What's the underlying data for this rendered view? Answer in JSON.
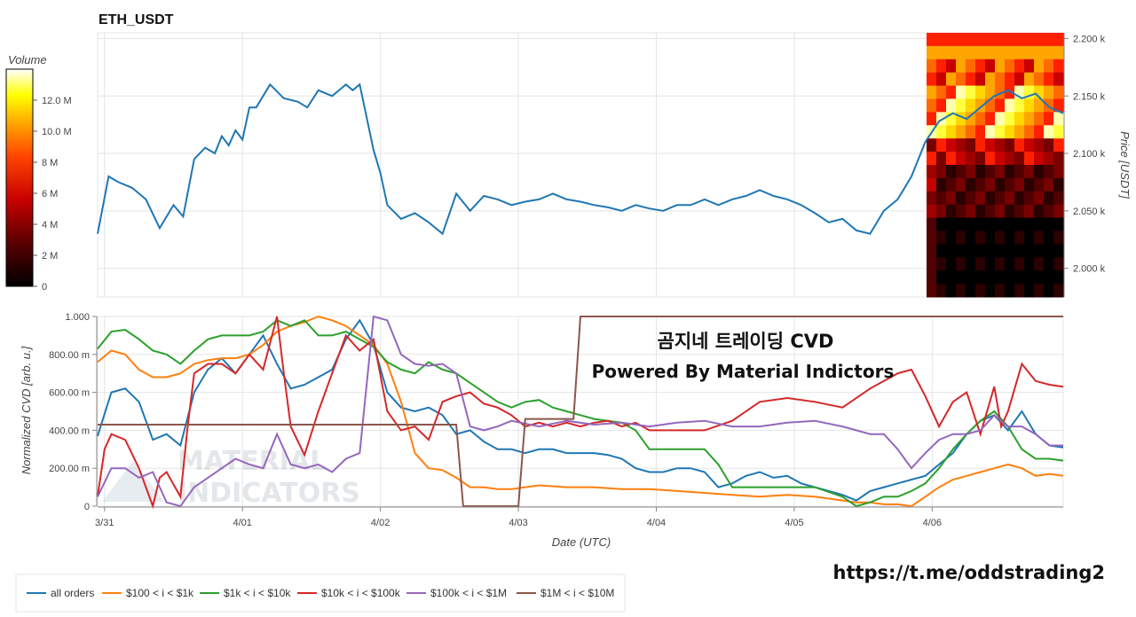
{
  "chart_data": {
    "title": "ETH_USDT",
    "colorbar": {
      "label": "Volume",
      "ticks": [
        "12.0 M",
        "10.0 M",
        "8 M",
        "6 M",
        "4 M",
        "2 M",
        "0"
      ],
      "tick_values": [
        12,
        10,
        8,
        6,
        4,
        2,
        0
      ],
      "range": [
        0,
        14
      ]
    },
    "price_panel": {
      "type": "line",
      "ylabel": "Price [USDT]",
      "ylim": [
        1975,
        2205
      ],
      "yticks": [
        2000,
        2050,
        2100,
        2150,
        2200
      ],
      "ytick_labels": [
        "2.000 k",
        "2.050 k",
        "2.100 k",
        "2.150 k",
        "2.200 k"
      ],
      "xlim": [
        0,
        7
      ],
      "color": "#1f77b4",
      "x": [
        0,
        0.08,
        0.15,
        0.25,
        0.35,
        0.45,
        0.55,
        0.62,
        0.7,
        0.78,
        0.85,
        0.9,
        0.95,
        1.0,
        1.05,
        1.1,
        1.15,
        1.25,
        1.35,
        1.45,
        1.52,
        1.6,
        1.7,
        1.8,
        1.85,
        1.9,
        2.0,
        2.05,
        2.1,
        2.2,
        2.3,
        2.4,
        2.5,
        2.6,
        2.7,
        2.8,
        2.9,
        3.0,
        3.1,
        3.2,
        3.3,
        3.4,
        3.5,
        3.6,
        3.7,
        3.8,
        3.9,
        4.0,
        4.1,
        4.2,
        4.3,
        4.4,
        4.5,
        4.6,
        4.7,
        4.8,
        4.9,
        5.0,
        5.1,
        5.2,
        5.3,
        5.4,
        5.5,
        5.6,
        5.7,
        5.8,
        5.9,
        6.0,
        6.1,
        6.2,
        6.3,
        6.4,
        6.5,
        6.6,
        6.7,
        6.8,
        6.9,
        7.0
      ],
      "y": [
        2030,
        2080,
        2075,
        2070,
        2060,
        2035,
        2055,
        2045,
        2095,
        2105,
        2100,
        2115,
        2107,
        2120,
        2112,
        2140,
        2140,
        2160,
        2148,
        2145,
        2140,
        2155,
        2150,
        2160,
        2155,
        2160,
        2103,
        2083,
        2055,
        2043,
        2048,
        2040,
        2030,
        2065,
        2050,
        2063,
        2060,
        2055,
        2058,
        2060,
        2065,
        2060,
        2058,
        2055,
        2053,
        2050,
        2055,
        2052,
        2050,
        2055,
        2055,
        2060,
        2055,
        2060,
        2063,
        2068,
        2063,
        2060,
        2055,
        2048,
        2040,
        2043,
        2033,
        2030,
        2050,
        2060,
        2080,
        2110,
        2128,
        2135,
        2130,
        2140,
        2150,
        2155,
        2148,
        2152,
        2140,
        2135
      ]
    },
    "cvd_panel": {
      "type": "line",
      "xlabel": "Date (UTC)",
      "ylabel": "Normalized CVD [arb. u.]",
      "ylim": [
        0,
        1
      ],
      "yticks": [
        0,
        0.2,
        0.4,
        0.6,
        0.8,
        1.0
      ],
      "ytick_labels": [
        "0",
        "200.00 m",
        "400.00 m",
        "600.00 m",
        "800.00 m",
        "1.000"
      ],
      "xlim": [
        0,
        7
      ],
      "xticks": [
        0.05,
        1.05,
        2.05,
        3.05,
        4.05,
        5.05,
        6.05
      ],
      "xtick_labels": [
        "3/31",
        "4/01",
        "4/02",
        "4/03",
        "4/04",
        "4/05",
        "4/06"
      ],
      "series": [
        {
          "name": "all orders",
          "color": "#1f77b4",
          "x": [
            0,
            0.1,
            0.2,
            0.3,
            0.4,
            0.5,
            0.6,
            0.7,
            0.8,
            0.9,
            1.0,
            1.1,
            1.2,
            1.3,
            1.4,
            1.5,
            1.6,
            1.7,
            1.8,
            1.9,
            2.0,
            2.1,
            2.2,
            2.3,
            2.4,
            2.5,
            2.6,
            2.7,
            2.8,
            2.9,
            3.0,
            3.1,
            3.2,
            3.3,
            3.4,
            3.5,
            3.6,
            3.7,
            3.8,
            3.9,
            4.0,
            4.1,
            4.2,
            4.3,
            4.4,
            4.5,
            4.6,
            4.7,
            4.8,
            4.9,
            5.0,
            5.1,
            5.2,
            5.3,
            5.4,
            5.5,
            5.6,
            5.7,
            5.8,
            5.9,
            6.0,
            6.1,
            6.2,
            6.3,
            6.4,
            6.5,
            6.6,
            6.7,
            6.8,
            6.9,
            7.0
          ],
          "y": [
            0.37,
            0.6,
            0.62,
            0.55,
            0.35,
            0.38,
            0.32,
            0.6,
            0.72,
            0.78,
            0.7,
            0.8,
            0.9,
            0.75,
            0.62,
            0.64,
            0.68,
            0.72,
            0.88,
            0.98,
            0.85,
            0.6,
            0.52,
            0.5,
            0.52,
            0.48,
            0.38,
            0.4,
            0.34,
            0.3,
            0.3,
            0.28,
            0.3,
            0.3,
            0.28,
            0.28,
            0.28,
            0.27,
            0.25,
            0.2,
            0.18,
            0.18,
            0.2,
            0.2,
            0.18,
            0.1,
            0.12,
            0.16,
            0.18,
            0.15,
            0.16,
            0.12,
            0.1,
            0.08,
            0.06,
            0.03,
            0.08,
            0.1,
            0.12,
            0.14,
            0.16,
            0.22,
            0.28,
            0.38,
            0.45,
            0.48,
            0.4,
            0.5,
            0.38,
            0.32,
            0.31
          ]
        },
        {
          "name": "$100 < i < $1k",
          "color": "#ff7f0e",
          "x": [
            0,
            0.1,
            0.2,
            0.3,
            0.4,
            0.5,
            0.6,
            0.7,
            0.8,
            0.9,
            1.0,
            1.1,
            1.2,
            1.3,
            1.4,
            1.5,
            1.6,
            1.7,
            1.8,
            1.9,
            2.0,
            2.1,
            2.2,
            2.3,
            2.4,
            2.5,
            2.6,
            2.7,
            2.8,
            2.9,
            3.0,
            3.2,
            3.4,
            3.6,
            3.8,
            4.0,
            4.2,
            4.4,
            4.6,
            4.8,
            5.0,
            5.2,
            5.4,
            5.5,
            5.6,
            5.7,
            5.8,
            5.9,
            6.0,
            6.1,
            6.2,
            6.3,
            6.4,
            6.5,
            6.6,
            6.7,
            6.8,
            6.9,
            7.0
          ],
          "y": [
            0.76,
            0.82,
            0.8,
            0.72,
            0.68,
            0.68,
            0.7,
            0.75,
            0.77,
            0.78,
            0.78,
            0.8,
            0.85,
            0.92,
            0.95,
            0.97,
            1.0,
            0.98,
            0.95,
            0.9,
            0.85,
            0.75,
            0.55,
            0.28,
            0.2,
            0.19,
            0.15,
            0.1,
            0.1,
            0.09,
            0.09,
            0.11,
            0.1,
            0.1,
            0.09,
            0.09,
            0.08,
            0.07,
            0.06,
            0.05,
            0.06,
            0.05,
            0.03,
            0.02,
            0.02,
            0.01,
            0.01,
            0.0,
            0.05,
            0.1,
            0.14,
            0.16,
            0.18,
            0.2,
            0.22,
            0.2,
            0.16,
            0.17,
            0.16
          ]
        },
        {
          "name": "$1k < i < $10k",
          "color": "#2ca02c",
          "x": [
            0,
            0.1,
            0.2,
            0.3,
            0.4,
            0.5,
            0.6,
            0.7,
            0.8,
            0.9,
            1.0,
            1.1,
            1.2,
            1.3,
            1.4,
            1.5,
            1.6,
            1.7,
            1.8,
            1.9,
            2.0,
            2.1,
            2.2,
            2.3,
            2.4,
            2.5,
            2.6,
            2.7,
            2.8,
            2.9,
            3.0,
            3.1,
            3.2,
            3.3,
            3.4,
            3.5,
            3.6,
            3.7,
            3.8,
            3.9,
            4.0,
            4.2,
            4.4,
            4.5,
            4.6,
            4.7,
            4.8,
            5.0,
            5.2,
            5.4,
            5.5,
            5.6,
            5.7,
            5.8,
            5.9,
            6.0,
            6.1,
            6.2,
            6.3,
            6.4,
            6.5,
            6.6,
            6.7,
            6.8,
            6.9,
            7.0
          ],
          "y": [
            0.83,
            0.92,
            0.93,
            0.88,
            0.82,
            0.8,
            0.75,
            0.82,
            0.88,
            0.9,
            0.9,
            0.9,
            0.92,
            0.98,
            0.95,
            0.98,
            0.9,
            0.9,
            0.92,
            0.88,
            0.84,
            0.76,
            0.72,
            0.7,
            0.76,
            0.72,
            0.7,
            0.65,
            0.6,
            0.55,
            0.52,
            0.55,
            0.56,
            0.52,
            0.5,
            0.48,
            0.46,
            0.45,
            0.44,
            0.4,
            0.3,
            0.3,
            0.3,
            0.22,
            0.1,
            0.1,
            0.1,
            0.1,
            0.1,
            0.05,
            0.0,
            0.02,
            0.05,
            0.05,
            0.08,
            0.12,
            0.2,
            0.3,
            0.38,
            0.45,
            0.5,
            0.42,
            0.3,
            0.25,
            0.25,
            0.24
          ]
        },
        {
          "name": "$10k < i < $100k",
          "color": "#d62728",
          "x": [
            0,
            0.05,
            0.1,
            0.2,
            0.3,
            0.4,
            0.45,
            0.5,
            0.6,
            0.65,
            0.7,
            0.8,
            0.9,
            1.0,
            1.1,
            1.2,
            1.3,
            1.35,
            1.4,
            1.5,
            1.6,
            1.7,
            1.8,
            1.9,
            2.0,
            2.1,
            2.2,
            2.3,
            2.4,
            2.5,
            2.6,
            2.7,
            2.8,
            2.9,
            3.0,
            3.1,
            3.2,
            3.3,
            3.4,
            3.5,
            3.6,
            3.7,
            3.8,
            3.9,
            4.0,
            4.2,
            4.4,
            4.6,
            4.8,
            5.0,
            5.2,
            5.4,
            5.6,
            5.8,
            5.9,
            6.0,
            6.1,
            6.2,
            6.3,
            6.4,
            6.5,
            6.55,
            6.6,
            6.7,
            6.8,
            6.9,
            7.0
          ],
          "y": [
            0.05,
            0.3,
            0.38,
            0.35,
            0.2,
            0.0,
            0.15,
            0.18,
            0.05,
            0.4,
            0.7,
            0.75,
            0.75,
            0.7,
            0.8,
            0.72,
            1.0,
            0.7,
            0.42,
            0.27,
            0.5,
            0.7,
            0.9,
            0.82,
            0.88,
            0.5,
            0.4,
            0.42,
            0.35,
            0.55,
            0.58,
            0.6,
            0.54,
            0.52,
            0.48,
            0.42,
            0.44,
            0.42,
            0.44,
            0.42,
            0.44,
            0.45,
            0.42,
            0.44,
            0.4,
            0.4,
            0.4,
            0.45,
            0.55,
            0.57,
            0.55,
            0.52,
            0.62,
            0.7,
            0.72,
            0.58,
            0.42,
            0.55,
            0.6,
            0.38,
            0.63,
            0.42,
            0.5,
            0.75,
            0.66,
            0.64,
            0.63
          ]
        },
        {
          "name": "$100k < i < $1M",
          "color": "#9467bd",
          "x": [
            0,
            0.1,
            0.2,
            0.3,
            0.4,
            0.5,
            0.6,
            0.7,
            0.8,
            0.9,
            1.0,
            1.1,
            1.2,
            1.3,
            1.4,
            1.5,
            1.6,
            1.7,
            1.8,
            1.9,
            2.0,
            2.1,
            2.2,
            2.3,
            2.4,
            2.5,
            2.6,
            2.7,
            2.8,
            2.9,
            3.0,
            3.2,
            3.4,
            3.6,
            3.8,
            4.0,
            4.2,
            4.4,
            4.6,
            4.8,
            5.0,
            5.2,
            5.4,
            5.5,
            5.6,
            5.7,
            5.8,
            5.9,
            6.0,
            6.1,
            6.2,
            6.3,
            6.4,
            6.5,
            6.6,
            6.7,
            6.8,
            6.9,
            7.0
          ],
          "y": [
            0.05,
            0.2,
            0.2,
            0.15,
            0.18,
            0.02,
            0.0,
            0.1,
            0.15,
            0.2,
            0.25,
            0.22,
            0.2,
            0.38,
            0.22,
            0.2,
            0.22,
            0.18,
            0.25,
            0.28,
            1.0,
            0.98,
            0.8,
            0.75,
            0.74,
            0.75,
            0.7,
            0.42,
            0.4,
            0.42,
            0.45,
            0.42,
            0.45,
            0.43,
            0.44,
            0.42,
            0.44,
            0.45,
            0.42,
            0.42,
            0.44,
            0.45,
            0.42,
            0.4,
            0.38,
            0.38,
            0.3,
            0.2,
            0.28,
            0.35,
            0.38,
            0.38,
            0.4,
            0.48,
            0.42,
            0.42,
            0.38,
            0.32,
            0.32
          ]
        },
        {
          "name": "$1M < i < $10M",
          "color": "#8c564b",
          "x": [
            0,
            2.6,
            2.65,
            3.05,
            3.1,
            3.45,
            3.5,
            7.0
          ],
          "y": [
            0.43,
            0.43,
            0.0,
            0.0,
            0.46,
            0.46,
            1.0,
            1.0
          ]
        }
      ]
    },
    "heatmap": {
      "type": "heatmap",
      "description_rows": 20,
      "description_cols": 14
    },
    "annotations": {
      "korean_title": "곰지네 트레이딩 CVD",
      "powered_by": "Powered By Material Indictors",
      "watermark_line1": "MATERIAL",
      "watermark_line2": "INDICATORS",
      "telegram_link": "https://t.me/oddstrading2"
    },
    "legend": {
      "position": "bottom-left",
      "entries": [
        "all orders",
        "$100 < i < $1k",
        "$1k < i < $10k",
        "$10k < i < $100k",
        "$100k < i < $1M",
        "$1M < i < $10M"
      ]
    }
  }
}
